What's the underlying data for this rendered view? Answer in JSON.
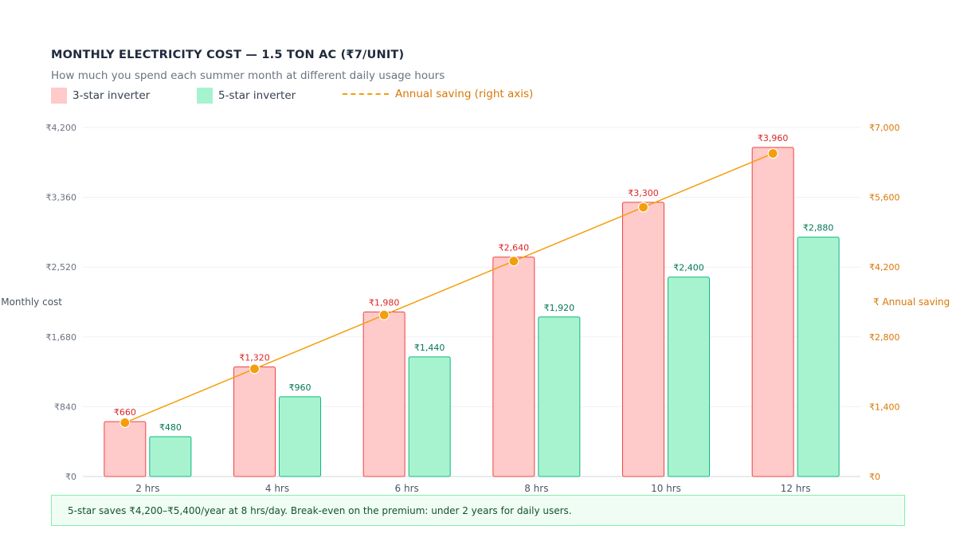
{
  "chart_data": {
    "type": "bar",
    "title": "MONTHLY ELECTRICITY COST — 1.5 TON AC (₹7/UNIT)",
    "subtitle": "How much you spend each summer month at different daily usage hours",
    "categories": [
      "2 hrs",
      "4 hrs",
      "6 hrs",
      "8 hrs",
      "10 hrs",
      "12 hrs"
    ],
    "series": [
      {
        "name": "3-star inverter",
        "kind": "bar",
        "axis": "left",
        "values": [
          660,
          1320,
          1980,
          2640,
          3300,
          3960
        ],
        "labels": [
          "₹660",
          "₹1,320",
          "₹1,980",
          "₹2,640",
          "₹3,300",
          "₹3,960"
        ],
        "fill": "#fecaca",
        "stroke": "#ef4444",
        "label_color": "#dc2626"
      },
      {
        "name": "5-star inverter",
        "kind": "bar",
        "axis": "left",
        "values": [
          480,
          960,
          1440,
          1920,
          2400,
          2880
        ],
        "labels": [
          "₹480",
          "₹960",
          "₹1,440",
          "₹1,920",
          "₹2,400",
          "₹2,880"
        ],
        "fill": "#a7f3d0",
        "stroke": "#10b981",
        "label_color": "#047857"
      },
      {
        "name": "Annual saving (right axis)",
        "kind": "line",
        "axis": "right",
        "values": [
          1080,
          2160,
          3240,
          4320,
          5400,
          6480
        ],
        "color": "#f59e0b"
      }
    ],
    "y_left": {
      "label": "₹ Monthly cost",
      "range": [
        0,
        4200
      ],
      "ticks": [
        0,
        840,
        1680,
        2520,
        3360,
        4200
      ],
      "tick_labels": [
        "₹0",
        "₹840",
        "₹1,680",
        "₹2,520",
        "₹3,360",
        "₹4,200"
      ],
      "color": "#6b7280"
    },
    "y_right": {
      "label": "₹ Annual saving",
      "range": [
        0,
        7000
      ],
      "ticks": [
        0,
        1400,
        2800,
        4200,
        5600,
        7000
      ],
      "tick_labels": [
        "₹0",
        "₹1,400",
        "₹2,800",
        "₹4,200",
        "₹5,600",
        "₹7,000"
      ],
      "color": "#d97706"
    },
    "grid": true,
    "legend_position": "top-left"
  },
  "legend": {
    "three_star": "3-star inverter",
    "five_star": "5-star inverter",
    "saving": "Annual saving (right axis)"
  },
  "colors": {
    "three_star_fill": "#fecaca",
    "five_star_fill": "#a7f3d0",
    "saving_line": "#f59e0b",
    "three_star_text": "#374151",
    "saving_text": "#d97706"
  },
  "note": "5-star saves ₹4,200–₹5,400/year at 8 hrs/day. Break-even on the premium: under 2 years for daily users."
}
